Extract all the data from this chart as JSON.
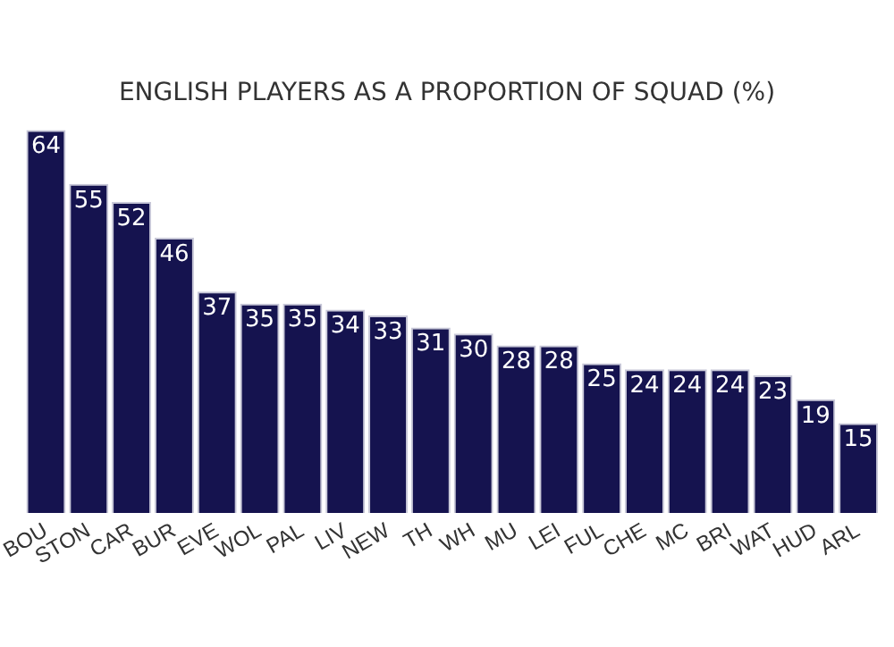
{
  "chart_data": {
    "type": "bar",
    "title": "ENGLISH PLAYERS AS A PROPORTION OF SQUAD (%)",
    "categories": [
      "BOU",
      "STON",
      "CAR",
      "BUR",
      "EVE",
      "WOL",
      "PAL",
      "LIV",
      "NEW",
      "TH",
      "WH",
      "MU",
      "LEI",
      "FUL",
      "CHE",
      "MC",
      "BRI",
      "WAT",
      "HUD",
      "ARL"
    ],
    "values": [
      64,
      55,
      52,
      46,
      37,
      35,
      35,
      34,
      33,
      31,
      30,
      28,
      28,
      25,
      24,
      24,
      24,
      23,
      19,
      15
    ],
    "color": "#15134f",
    "ylim": [
      0,
      64
    ],
    "data_labels": true,
    "grid": false,
    "legend": false
  }
}
